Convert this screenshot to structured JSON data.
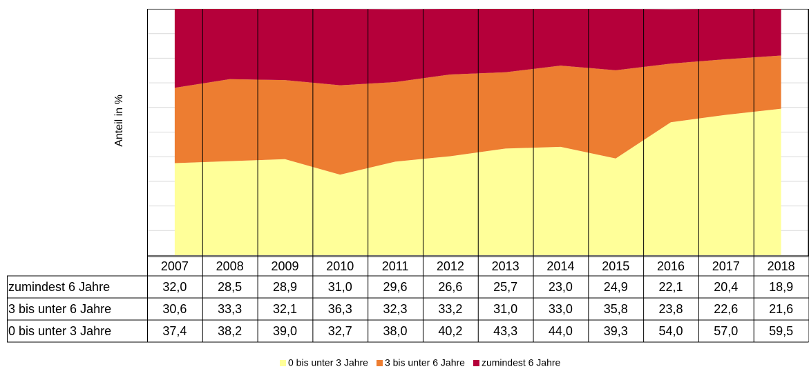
{
  "chart_data": {
    "type": "stacked_area",
    "y_label": "Anteil in %",
    "categories": [
      "2007",
      "2008",
      "2009",
      "2010",
      "2011",
      "2012",
      "2013",
      "2014",
      "2015",
      "2016",
      "2017",
      "2018"
    ],
    "series": [
      {
        "name": "0 bis unter 3 Jahre",
        "color": "#ffff99",
        "values": [
          37.4,
          38.2,
          39.0,
          32.7,
          38.0,
          40.2,
          43.3,
          44.0,
          39.3,
          54.0,
          57.0,
          59.5
        ],
        "value_labels": [
          "37,4",
          "38,2",
          "39,0",
          "32,7",
          "38,0",
          "40,2",
          "43,3",
          "44,0",
          "39,3",
          "54,0",
          "57,0",
          "59,5"
        ]
      },
      {
        "name": "3 bis unter 6 Jahre",
        "color": "#ed7d31",
        "values": [
          30.6,
          33.3,
          32.1,
          36.3,
          32.3,
          33.2,
          31.0,
          33.0,
          35.8,
          23.8,
          22.6,
          21.6
        ],
        "value_labels": [
          "30,6",
          "33,3",
          "32,1",
          "36,3",
          "32,3",
          "33,2",
          "31,0",
          "33,0",
          "35,8",
          "23,8",
          "22,6",
          "21,6"
        ]
      },
      {
        "name": "zumindest 6 Jahre",
        "color": "#b5003a",
        "values": [
          32.0,
          28.5,
          28.9,
          31.0,
          29.6,
          26.6,
          25.7,
          23.0,
          24.9,
          22.1,
          20.4,
          18.9
        ],
        "value_labels": [
          "32,0",
          "28,5",
          "28,9",
          "31,0",
          "29,6",
          "26,6",
          "25,7",
          "23,0",
          "24,9",
          "22,1",
          "20,4",
          "18,9"
        ]
      }
    ],
    "ylim": [
      0,
      100
    ],
    "yticks": [
      0,
      10,
      20,
      30,
      40,
      50,
      60,
      70,
      80,
      90,
      100
    ],
    "grid": true
  }
}
